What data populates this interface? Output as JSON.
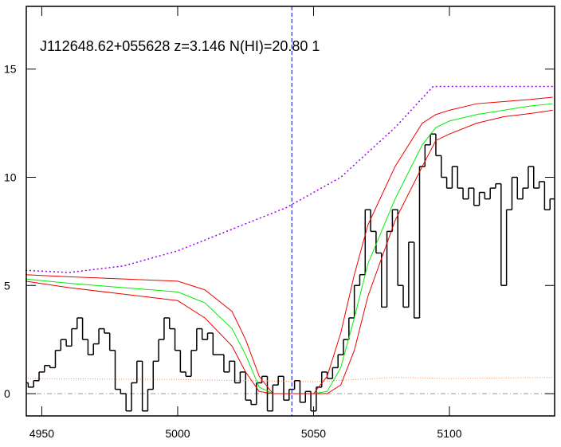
{
  "chart_data": {
    "type": "line",
    "title": "J112648.62+055628 z=3.146 N(HI)=20.80 1",
    "xlim": [
      4944.3,
      5138.7
    ],
    "ylim": [
      -1.03,
      17.9
    ],
    "xticks": [
      4950,
      5000,
      5050,
      5100
    ],
    "yticks": [
      0,
      5,
      10,
      15
    ],
    "series": [
      {
        "color": "#000000",
        "drawstyle": "steps",
        "width": 1.5,
        "x": [
          4944,
          4946,
          4948,
          4950,
          4952,
          4954,
          4956,
          4958,
          4960,
          4962,
          4964,
          4966,
          4968,
          4970,
          4972,
          4974,
          4976,
          4978,
          4980,
          4982,
          4984,
          4986,
          4988,
          4990,
          4992,
          4994,
          4996,
          4998,
          5000,
          5002,
          5004,
          5006,
          5008,
          5010,
          5012,
          5014,
          5016,
          5018,
          5020,
          5022,
          5024,
          5026,
          5028,
          5030,
          5032,
          5034,
          5036,
          5038,
          5040,
          5042,
          5044,
          5046,
          5048,
          5050,
          5052,
          5054,
          5056,
          5058,
          5060,
          5062,
          5064,
          5066,
          5068,
          5070,
          5072,
          5074,
          5076,
          5078,
          5080,
          5082,
          5084,
          5086,
          5088,
          5090,
          5092,
          5094,
          5096,
          5098,
          5100,
          5102,
          5104,
          5106,
          5108,
          5110,
          5112,
          5114,
          5116,
          5118,
          5120,
          5122,
          5124,
          5126,
          5128,
          5130,
          5132,
          5134,
          5136,
          5138
        ],
        "values": [
          0.5,
          0.3,
          0.6,
          1.0,
          1.3,
          1.2,
          2.0,
          2.5,
          2.2,
          3.0,
          3.5,
          2.5,
          1.8,
          2.3,
          3.0,
          2.8,
          2.0,
          0.2,
          0.0,
          -0.8,
          0.5,
          1.5,
          -0.8,
          0.2,
          1.5,
          2.5,
          3.5,
          3.0,
          2.0,
          1.0,
          0.8,
          2.0,
          3.0,
          2.5,
          2.8,
          1.8,
          1.8,
          1.0,
          1.5,
          0.5,
          1.0,
          -0.3,
          -0.5,
          0.5,
          0.8,
          -0.8,
          0.4,
          0.8,
          -0.3,
          0.2,
          0.6,
          -0.4,
          0.1,
          -0.8,
          0.3,
          1.0,
          0.7,
          1.2,
          1.8,
          2.5,
          3.5,
          5.0,
          5.5,
          8.5,
          7.5,
          6.5,
          4.0,
          7.5,
          8.5,
          5.0,
          4.0,
          7.0,
          3.5,
          10.5,
          11.5,
          12.0,
          11.0,
          10.0,
          9.5,
          10.5,
          9.5,
          9.0,
          9.5,
          8.7,
          9.3,
          9.0,
          9.5,
          9.7,
          5.0,
          8.5,
          10.0,
          9.0,
          9.5,
          10.5,
          9.5,
          9.8,
          8.5,
          9.0
        ]
      },
      {
        "color": "#00ee00",
        "width": 1,
        "x": [
          4944,
          4960,
          4980,
          5000,
          5010,
          5020,
          5025,
          5030,
          5035,
          5050,
          5055,
          5060,
          5065,
          5070,
          5080,
          5090,
          5095,
          5100,
          5110,
          5120,
          5130,
          5138
        ],
        "values": [
          5.3,
          5.1,
          4.9,
          4.7,
          4.2,
          3.0,
          1.8,
          0.3,
          0,
          0,
          0.1,
          1.2,
          3.5,
          6.0,
          9.0,
          11.5,
          12.3,
          12.6,
          12.9,
          13.1,
          13.3,
          13.4
        ]
      },
      {
        "color": "#ee0000",
        "width": 1,
        "x": [
          4944,
          4960,
          4980,
          5000,
          5010,
          5020,
          5025,
          5030,
          5035,
          5050,
          5055,
          5060,
          5065,
          5070,
          5080,
          5090,
          5095,
          5100,
          5110,
          5120,
          5130,
          5138
        ],
        "values": [
          5.5,
          5.4,
          5.3,
          5.2,
          4.8,
          3.8,
          2.5,
          0.8,
          0,
          0,
          0.8,
          2.8,
          5.5,
          7.8,
          10.5,
          12.5,
          12.9,
          13.1,
          13.4,
          13.5,
          13.6,
          13.7
        ]
      },
      {
        "color": "#ee0000",
        "width": 1,
        "x": [
          4944,
          4960,
          4980,
          5000,
          5010,
          5020,
          5025,
          5030,
          5035,
          5050,
          5055,
          5060,
          5065,
          5070,
          5080,
          5090,
          5095,
          5100,
          5110,
          5120,
          5130,
          5138
        ],
        "values": [
          5.2,
          4.9,
          4.6,
          4.3,
          3.5,
          2.2,
          1.0,
          0.1,
          0,
          0,
          0,
          0.4,
          2.0,
          4.5,
          8.0,
          10.5,
          11.7,
          12.0,
          12.5,
          12.8,
          12.95,
          13.1
        ]
      },
      {
        "color": "#9900ee",
        "dash": "2,3",
        "width": 1.5,
        "x": [
          4944,
          4960,
          4980,
          5000,
          5020,
          5040,
          5060,
          5080,
          5094,
          5138
        ],
        "values": [
          5.7,
          5.6,
          5.9,
          6.6,
          7.6,
          8.6,
          10.0,
          12.3,
          14.2,
          14.2
        ]
      },
      {
        "color": "#ff8844",
        "dash": "1,2",
        "width": 1,
        "x": [
          4944,
          5000,
          5050,
          5080,
          5100,
          5138
        ],
        "values": [
          0.7,
          0.65,
          0.55,
          0.75,
          0.7,
          0.75
        ]
      }
    ],
    "hlines": [
      {
        "value": 0,
        "color": "#999999",
        "dash": "6,3,1,3"
      }
    ],
    "vlines": [
      {
        "value": 5042,
        "color": "#0000cc",
        "dash": "5,3"
      }
    ]
  }
}
